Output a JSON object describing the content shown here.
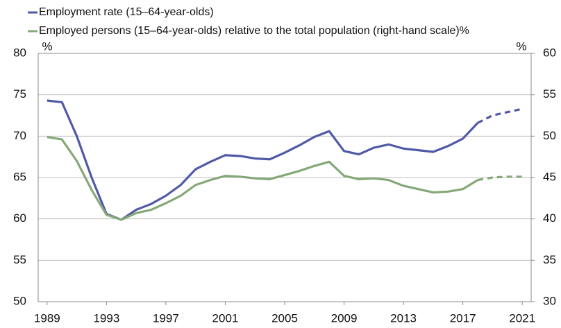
{
  "chart_data": {
    "type": "line",
    "x": [
      1989,
      1990,
      1991,
      1992,
      1993,
      1994,
      1995,
      1996,
      1997,
      1998,
      1999,
      2000,
      2001,
      2002,
      2003,
      2004,
      2005,
      2006,
      2007,
      2008,
      2009,
      2010,
      2011,
      2012,
      2013,
      2014,
      2015,
      2016,
      2017,
      2018,
      2019,
      2020,
      2021
    ],
    "xlim": [
      1988.4,
      2021.6
    ],
    "xticks": [
      1989,
      1993,
      1997,
      2001,
      2005,
      2009,
      2013,
      2017,
      2021
    ],
    "ylim": [
      50,
      80
    ],
    "yticks": [
      50,
      55,
      60,
      65,
      70,
      75,
      80
    ],
    "y_unit": "%",
    "y2lim": [
      30,
      60
    ],
    "y2ticks": [
      30,
      35,
      40,
      45,
      50,
      55,
      60
    ],
    "y2_unit": "%",
    "grid": true,
    "dash_from": 2018,
    "series": [
      {
        "name": "Employment rate (15–64-year-olds)",
        "color": "#5059a6",
        "values": [
          74.3,
          74.1,
          70,
          65,
          60.6,
          59.9,
          61.1,
          61.8,
          62.8,
          64.1,
          66,
          66.9,
          67.7,
          67.6,
          67.3,
          67.2,
          68,
          68.9,
          69.9,
          70.6,
          68.2,
          67.8,
          68.6,
          69,
          68.5,
          68.3,
          68.1,
          68.8,
          69.7,
          71.6,
          72.5,
          72.9,
          73.3
        ]
      },
      {
        "name": "Employed persons (15–64-year-olds) relative to the total population  (right-hand scale)%",
        "color": "#84a878",
        "axis": "y2",
        "values": [
          49.9,
          49.6,
          47,
          43.5,
          40.5,
          39.9,
          40.7,
          41.1,
          41.9,
          42.8,
          44.1,
          44.7,
          45.2,
          45.1,
          44.9,
          44.8,
          45.3,
          45.8,
          46.4,
          46.9,
          45.2,
          44.8,
          44.9,
          44.7,
          44,
          43.6,
          43.2,
          43.3,
          43.6,
          44.7,
          45,
          45.1,
          45.1
        ]
      }
    ]
  }
}
